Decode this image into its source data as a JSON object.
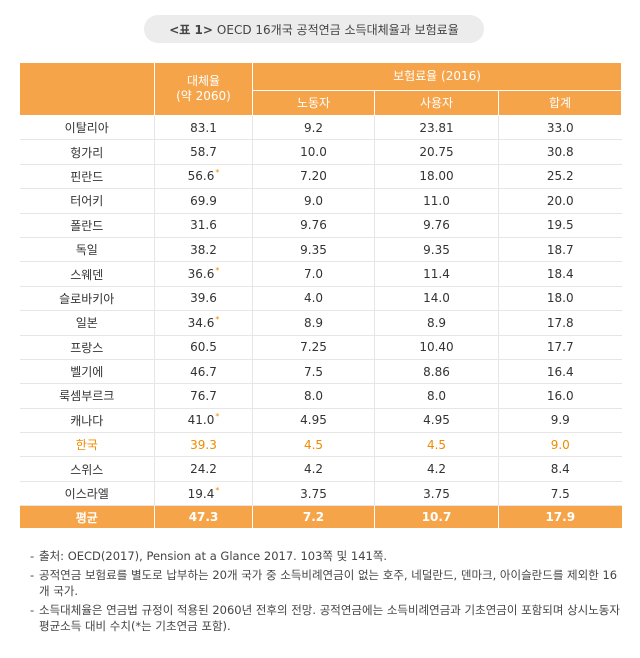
{
  "title": {
    "tag": "<표 1>",
    "text": "OECD 16개국 공적연금 소득대체율과 보험료율"
  },
  "table": {
    "header": {
      "replacement": "대체율",
      "replacement_sub": "(약 2060)",
      "contribution": "보험료율 (2016)",
      "worker": "노동자",
      "employer": "사용자",
      "total": "합계"
    },
    "rows": [
      {
        "country": "이탈리아",
        "rate": "83.1",
        "star": "",
        "worker": "9.2",
        "employer": "23.81",
        "total": "33.0",
        "highlight": false
      },
      {
        "country": "헝가리",
        "rate": "58.7",
        "star": "",
        "worker": "10.0",
        "employer": "20.75",
        "total": "30.8",
        "highlight": false
      },
      {
        "country": "핀란드",
        "rate": "56.6",
        "star": "*",
        "worker": "7.20",
        "employer": "18.00",
        "total": "25.2",
        "highlight": false
      },
      {
        "country": "터어키",
        "rate": "69.9",
        "star": "",
        "worker": "9.0",
        "employer": "11.0",
        "total": "20.0",
        "highlight": false
      },
      {
        "country": "폴란드",
        "rate": "31.6",
        "star": "",
        "worker": "9.76",
        "employer": "9.76",
        "total": "19.5",
        "highlight": false
      },
      {
        "country": "독일",
        "rate": "38.2",
        "star": "",
        "worker": "9.35",
        "employer": "9.35",
        "total": "18.7",
        "highlight": false
      },
      {
        "country": "스웨덴",
        "rate": "36.6",
        "star": "*",
        "worker": "7.0",
        "employer": "11.4",
        "total": "18.4",
        "highlight": false
      },
      {
        "country": "슬로바키아",
        "rate": "39.6",
        "star": "",
        "worker": "4.0",
        "employer": "14.0",
        "total": "18.0",
        "highlight": false
      },
      {
        "country": "일본",
        "rate": "34.6",
        "star": "*",
        "worker": "8.9",
        "employer": "8.9",
        "total": "17.8",
        "highlight": false
      },
      {
        "country": "프랑스",
        "rate": "60.5",
        "star": "",
        "worker": "7.25",
        "employer": "10.40",
        "total": "17.7",
        "highlight": false
      },
      {
        "country": "벨기에",
        "rate": "46.7",
        "star": "",
        "worker": "7.5",
        "employer": "8.86",
        "total": "16.4",
        "highlight": false
      },
      {
        "country": "룩셈부르크",
        "rate": "76.7",
        "star": "",
        "worker": "8.0",
        "employer": "8.0",
        "total": "16.0",
        "highlight": false
      },
      {
        "country": "캐나다",
        "rate": "41.0",
        "star": "*",
        "worker": "4.95",
        "employer": "4.95",
        "total": "9.9",
        "highlight": false
      },
      {
        "country": "한국",
        "rate": "39.3",
        "star": "",
        "worker": "4.5",
        "employer": "4.5",
        "total": "9.0",
        "highlight": true
      },
      {
        "country": "스위스",
        "rate": "24.2",
        "star": "",
        "worker": "4.2",
        "employer": "4.2",
        "total": "8.4",
        "highlight": false
      },
      {
        "country": "이스라엘",
        "rate": "19.4",
        "star": "*",
        "worker": "3.75",
        "employer": "3.75",
        "total": "7.5",
        "highlight": false
      }
    ],
    "footer": {
      "label": "평균",
      "rate": "47.3",
      "worker": "7.2",
      "employer": "10.7",
      "total": "17.9"
    }
  },
  "notes": [
    "출처: OECD(2017), Pension at a Glance 2017. 103쪽 및 141쪽.",
    "공적연금 보험료를 별도로 납부하는 20개 국가 중 소득비례연금이 없는 호주, 네덜란드, 덴마크, 아이슬란드를 제외한 16개 국가.",
    "소득대체율은 연금법 규정이 적용된 2060년 전후의 전망. 공적연금에는 소득비례연금과 기초연금이 포함되며 상시노동자 평균소득 대비 수치(*는 기초연금 포함)."
  ],
  "colors": {
    "header": "#f6a44a",
    "highlight": "#f08a00",
    "title_bg": "#ececec"
  }
}
